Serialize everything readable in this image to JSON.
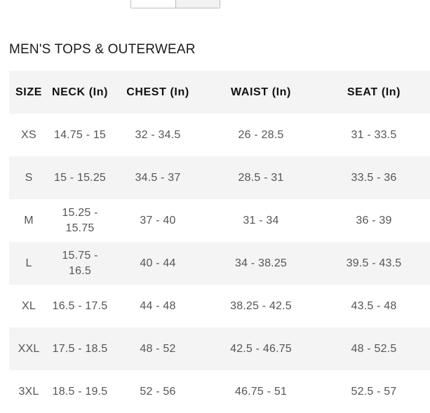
{
  "section_title": "MEN'S TOPS & OUTERWEAR",
  "size_chart": {
    "headers": [
      "SIZE",
      "NECK (In)",
      "CHEST (In)",
      "WAIST (In)",
      "SEAT (In)"
    ],
    "rows": [
      [
        "XS",
        "14.75 - 15",
        "32 - 34.5",
        "26 - 28.5",
        "31 - 33.5"
      ],
      [
        "S",
        "15 - 15.25",
        "34.5 - 37",
        "28.5 - 31",
        "33.5 - 36"
      ],
      [
        "M",
        "15.25 - 15.75",
        "37 - 40",
        "31 - 34",
        "36 - 39"
      ],
      [
        "L",
        "15.75 - 16.5",
        "40 - 44",
        "34 - 38.25",
        "39.5 - 43.5"
      ],
      [
        "XL",
        "16.5 - 17.5",
        "44 - 48",
        "38.25 - 42.5",
        "43.5 - 48"
      ],
      [
        "XXL",
        "17.5 - 18.5",
        "48 - 52",
        "42.5 - 46.75",
        "48 - 52.5"
      ],
      [
        "3XL",
        "18.5 - 19.5",
        "52 - 56",
        "46.75 - 51",
        "52.5 - 57"
      ]
    ]
  },
  "colors": {
    "header_bg": "#f4f4f4",
    "row_shade": "#f4f4f4",
    "text_primary": "#1a1a1a",
    "text_secondary": "#555555"
  }
}
